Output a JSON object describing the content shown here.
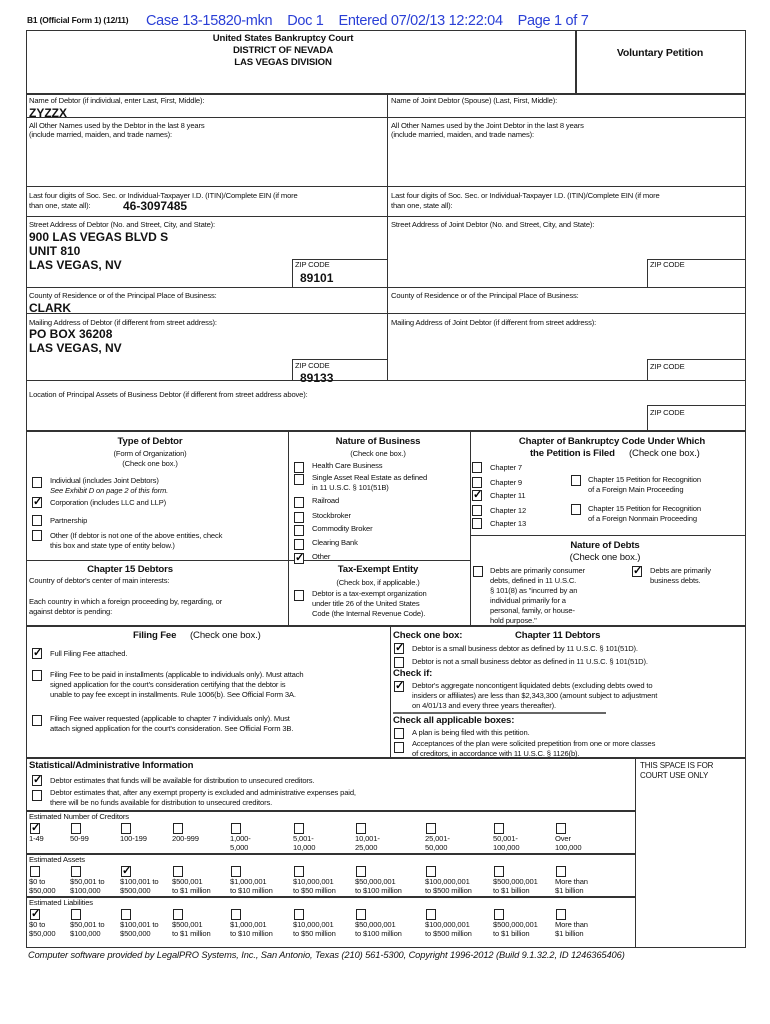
{
  "header": {
    "form_id": "B1 (Official Form 1) (12/11)",
    "case_stamp": "Case 13-15820-mkn    Doc 1    Entered 07/02/13 12:22:04    Page 1 of 7",
    "court": "United States Bankruptcy Court",
    "district": "DISTRICT OF NEVADA",
    "division": "LAS VEGAS DIVISION",
    "title": "Voluntary Petition"
  },
  "debtor": {
    "name_label": "Name of Debtor (if individual, enter Last, First, Middle):",
    "name": "ZYZZX",
    "other_names_label1": "All Other Names used by the Debtor in the last 8 years",
    "other_names_label2": "(include married, maiden, and trade names):",
    "ssn_label1": "Last four digits of Soc. Sec. or Individual-Taxpayer I.D. (ITIN)/Complete EIN (if more",
    "ssn_label2": "than one, state all):",
    "ein": "46-3097485",
    "street_label": "Street Address of Debtor (No. and Street, City, and State):",
    "street1": "900 LAS VEGAS BLVD S",
    "street2": "UNIT 810",
    "street3": "LAS VEGAS, NV",
    "zip_label": "ZIP CODE",
    "zip": "89101",
    "county_label": "County of Residence or of the Principal Place of Business:",
    "county": "CLARK",
    "mailing_label": "Mailing Address of Debtor (if different from street address):",
    "mailing1": "PO BOX 36208",
    "mailing2": "LAS VEGAS, NV",
    "mailing_zip": "89133",
    "location_label": "Location of Principal Assets of Business Debtor (if different from street address above):"
  },
  "joint": {
    "name_label": "Name of Joint Debtor (Spouse)  (Last, First, Middle):",
    "other_names_label1": "All Other Names used by the Joint Debtor in the last 8 years",
    "other_names_label2": "(include married, maiden, and trade names):",
    "ssn_label1": "Last four digits of Soc. Sec. or Individual-Taxpayer I.D. (ITIN)/Complete EIN (if more",
    "ssn_label2": "than one, state all):",
    "street_label": "Street Address of Joint Debtor (No. and Street, City, and State):",
    "county_label": "County of Residence or of the Principal Place of Business:",
    "mailing_label": "Mailing Address of Joint Debtor (if different from street address):"
  },
  "type_of_debtor": {
    "title": "Type of Debtor",
    "sub1": "(Form of Organization)",
    "sub2": "(Check one box.)",
    "individual": "Individual (includes Joint Debtors)",
    "individual_note": "See Exhibit D on page 2 of this form.",
    "individual_checked": false,
    "corporation": "Corporation (includes LLC and LLP)",
    "corporation_checked": true,
    "partnership": "Partnership",
    "partnership_checked": false,
    "other1": "Other (If debtor is not one of the above entities, check",
    "other2": "this box and state type of entity below.)",
    "other_checked": false
  },
  "nature_of_business": {
    "title": "Nature of Business",
    "sub": "(Check one box.)",
    "items": [
      {
        "label": "Health Care Business",
        "checked": false
      },
      {
        "label": "Single Asset Real Estate as defined",
        "label2": "in 11 U.S.C. § 101(51B)",
        "checked": false
      },
      {
        "label": "Railroad",
        "checked": false
      },
      {
        "label": "Stockbroker",
        "checked": false
      },
      {
        "label": "Commodity Broker",
        "checked": false
      },
      {
        "label": "Clearing Bank",
        "checked": false
      },
      {
        "label": "Other",
        "checked": true
      }
    ]
  },
  "chapter": {
    "title1": "Chapter of Bankruptcy Code Under Which",
    "title2": "the Petition is Filed",
    "sub": "(Check one box.)",
    "items": [
      {
        "label": "Chapter 7",
        "checked": false
      },
      {
        "label": "Chapter 9",
        "checked": false
      },
      {
        "label": "Chapter 11",
        "checked": true
      },
      {
        "label": "Chapter 12",
        "checked": false
      },
      {
        "label": "Chapter 13",
        "checked": false
      }
    ],
    "ch15_main1": "Chapter 15 Petition for Recognition",
    "ch15_main2": "of a Foreign Main Proceeding",
    "ch15_main_checked": false,
    "ch15_nonmain1": "Chapter 15 Petition for Recognition",
    "ch15_nonmain2": "of a Foreign Nonmain Proceeding",
    "ch15_nonmain_checked": false
  },
  "nature_of_debts": {
    "title": "Nature of Debts",
    "sub": "(Check one box.)",
    "consumer": [
      "Debts are primarily consumer",
      "debts, defined in 11 U.S.C.",
      "§ 101(8) as \"incurred by an",
      "individual primarily for a",
      "personal, family, or house-",
      "hold purpose.\""
    ],
    "consumer_checked": false,
    "business": [
      "Debts are primarily",
      "business debts."
    ],
    "business_checked": true
  },
  "chapter15_debtors": {
    "title": "Chapter 15 Debtors",
    "country": "Country of debtor's center of main interests:",
    "each1": "Each country in which a foreign proceeding by, regarding, or",
    "each2": "against debtor is pending:"
  },
  "tax_exempt": {
    "title": "Tax-Exempt Entity",
    "sub": "(Check box, if applicable.)",
    "text": [
      "Debtor is a tax-exempt organization",
      "under title 26 of the United States",
      "Code (the Internal Revenue Code)."
    ],
    "checked": false
  },
  "filing_fee": {
    "title": "Filing Fee",
    "sub": "(Check one box.)",
    "full": "Full Filing Fee attached.",
    "full_checked": true,
    "install": [
      "Filing Fee to be paid in installments (applicable to individuals only). Must attach",
      "signed application for the court's consideration certifying that the debtor is",
      "unable to pay fee except in installments.  Rule 1006(b).  See Official Form 3A."
    ],
    "install_checked": false,
    "waiver": [
      "Filing Fee waiver requested (applicable to chapter 7 individuals only).  Must",
      "attach signed application for the court's consideration.  See Official Form 3B."
    ],
    "waiver_checked": false
  },
  "ch11": {
    "check_one": "Check one box:",
    "title": "Chapter 11 Debtors",
    "small": "Debtor is a small business debtor as defined by 11 U.S.C. § 101(51D).",
    "small_checked": true,
    "not_small": "Debtor is not a small business debtor as defined in 11 U.S.C. § 101(51D).",
    "not_small_checked": false,
    "check_if": "Check if:",
    "aggregate": [
      "Debtor's aggregate noncontigent liquidated debts (excluding debts owed to",
      "insiders or affiliates) are less than $2,343,300 (amount subject to adjustment",
      "on 4/01/13 and every three years thereafter)."
    ],
    "aggregate_checked": true,
    "check_all": "Check all applicable boxes:",
    "plan": "A plan is being filed with this petition.",
    "plan_checked": false,
    "accept": [
      "Acceptances of the plan were solicited prepetition from one or more classes",
      "of creditors, in accordance with 11 U.S.C. § 1126(b)."
    ],
    "accept_checked": false
  },
  "stats": {
    "title": "Statistical/Administrative Information",
    "court_use1": "THIS SPACE IS FOR",
    "court_use2": "COURT USE ONLY",
    "funds": "Debtor estimates that funds will be available for distribution to unsecured creditors.",
    "funds_checked": true,
    "nofunds": [
      "Debtor estimates that, after any exempt property is excluded and administrative expenses paid,",
      "there will be no funds available for distribution to unsecured creditors."
    ],
    "nofunds_checked": false,
    "groups": [
      {
        "label": "Estimated Number of Creditors",
        "checked_index": 0,
        "options": [
          [
            "1-49",
            ""
          ],
          [
            "50-99",
            ""
          ],
          [
            "100-199",
            ""
          ],
          [
            "200-999",
            ""
          ],
          [
            "1,000-",
            "5,000"
          ],
          [
            "5,001-",
            "10,000"
          ],
          [
            "10,001-",
            "25,000"
          ],
          [
            "25,001-",
            "50,000"
          ],
          [
            "50,001-",
            "100,000"
          ],
          [
            "Over",
            "100,000"
          ]
        ]
      },
      {
        "label": "Estimated Assets",
        "checked_index": 2,
        "options": [
          [
            "$0 to",
            "$50,000"
          ],
          [
            "$50,001 to",
            "$100,000"
          ],
          [
            "$100,001 to",
            "$500,000"
          ],
          [
            "$500,001",
            "to $1 million"
          ],
          [
            "$1,000,001",
            "to $10 million"
          ],
          [
            "$10,000,001",
            "to $50 million"
          ],
          [
            "$50,000,001",
            "to $100 million"
          ],
          [
            "$100,000,001",
            "to $500 million"
          ],
          [
            "$500,000,001",
            "to $1 billion"
          ],
          [
            "More than",
            "$1 billion"
          ]
        ]
      },
      {
        "label": "Estimated Liabilities",
        "checked_index": 0,
        "options": [
          [
            "$0 to",
            "$50,000"
          ],
          [
            "$50,001 to",
            "$100,000"
          ],
          [
            "$100,001 to",
            "$500,000"
          ],
          [
            "$500,001",
            "to $1 million"
          ],
          [
            "$1,000,001",
            "to $10 million"
          ],
          [
            "$10,000,001",
            "to $50 million"
          ],
          [
            "$50,000,001",
            "to $100 million"
          ],
          [
            "$100,000,001",
            "to $500 million"
          ],
          [
            "$500,000,001",
            "to $1 billion"
          ],
          [
            "More than",
            "$1 billion"
          ]
        ]
      }
    ]
  },
  "footer": "Computer software provided by LegalPRO Systems, Inc., San Antonio, Texas (210) 561-5300, Copyright 1996-2012 (Build 9.1.32.2, ID 1246365406)",
  "colors": {
    "case_stamp": "#2a3fd6",
    "ink": "#111111"
  }
}
